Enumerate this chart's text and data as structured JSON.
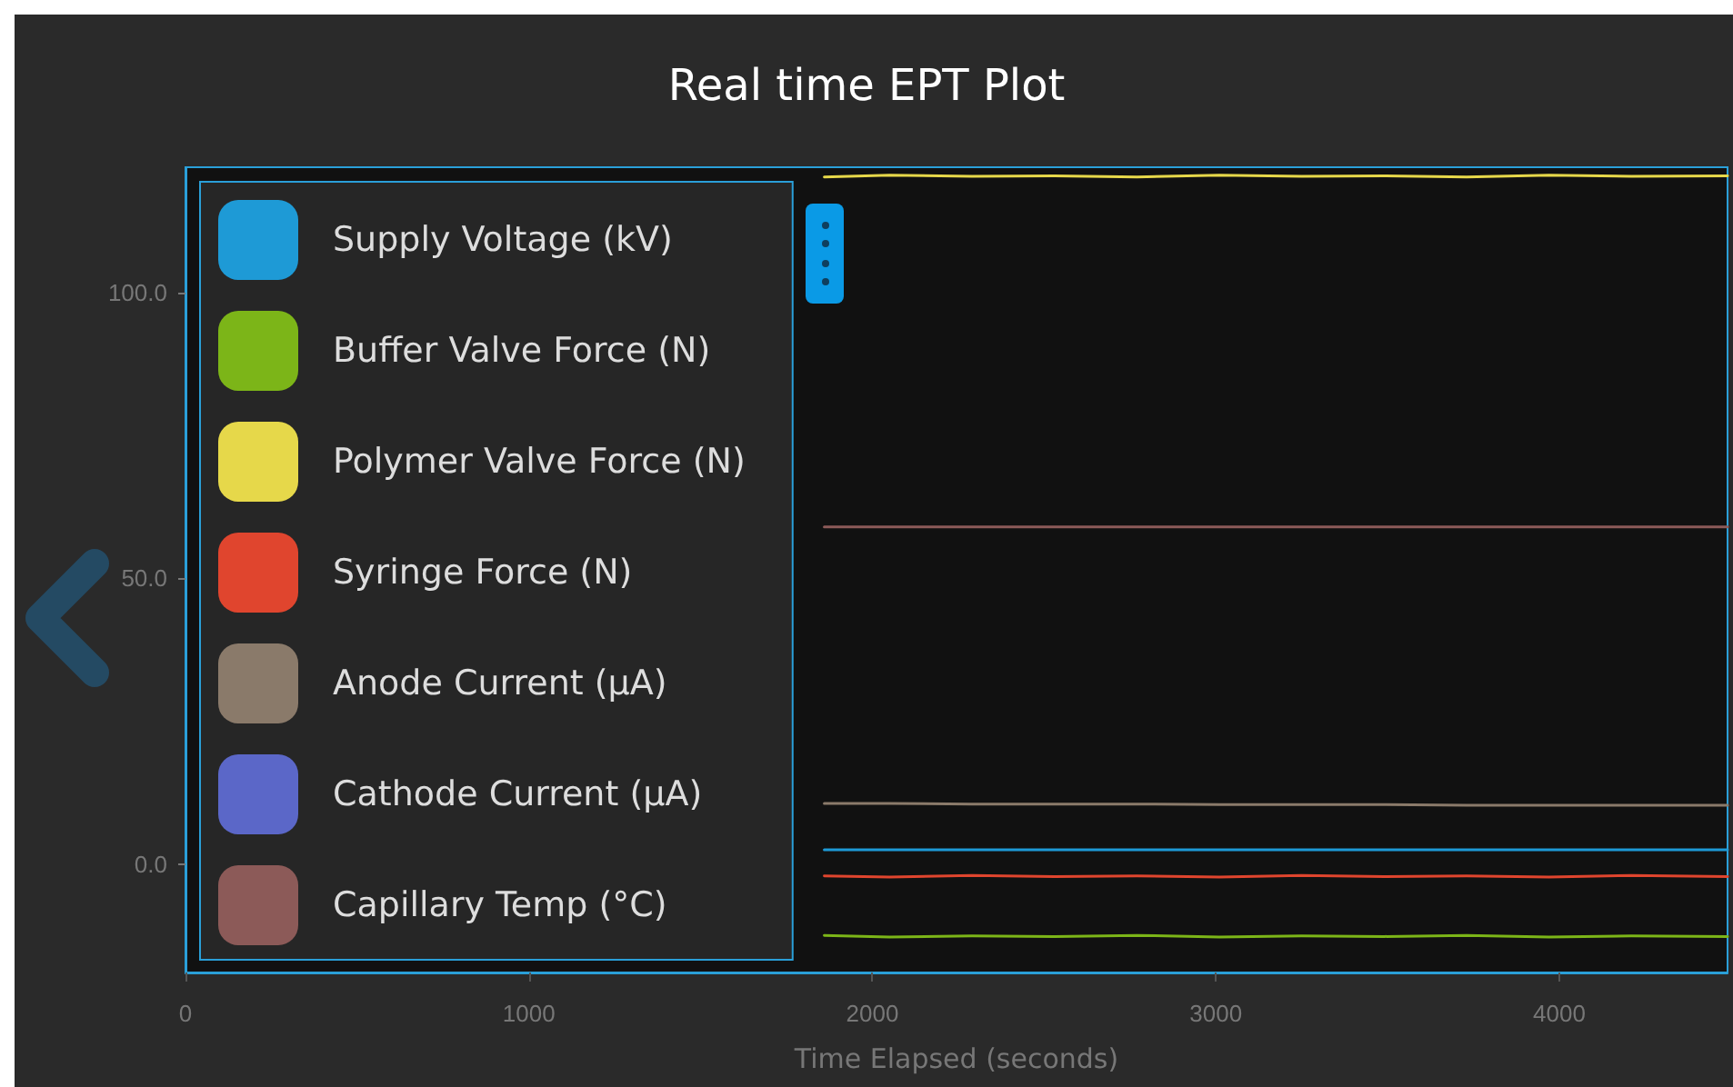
{
  "chart_data": {
    "type": "line",
    "title": "Real time EPT Plot",
    "xlabel": "Time Elapsed (seconds)",
    "x": [
      1860,
      2050,
      2290,
      2530,
      2770,
      3010,
      3250,
      3490,
      3730,
      3970,
      4210,
      4490
    ],
    "xlim": [
      0,
      4490
    ],
    "xticks": [
      0,
      1000,
      2000,
      3000,
      4000
    ],
    "ylim": [
      -19,
      122
    ],
    "yticks": [
      {
        "value": 0,
        "label": "0.0"
      },
      {
        "value": 50,
        "label": "50.0"
      },
      {
        "value": 100,
        "label": "100.0"
      }
    ],
    "grid": false,
    "legend": "left",
    "marker": "none",
    "line_style": "solid",
    "series": [
      {
        "name": "Supply Voltage (kV)",
        "color": "#1e9ad6",
        "values": [
          2.5,
          2.5,
          2.5,
          2.5,
          2.5,
          2.5,
          2.5,
          2.5,
          2.5,
          2.5,
          2.5,
          2.5
        ]
      },
      {
        "name": "Buffer Valve Force (N)",
        "color": "#7cb518",
        "values": [
          -12.5,
          -12.8,
          -12.6,
          -12.7,
          -12.5,
          -12.8,
          -12.6,
          -12.7,
          -12.5,
          -12.8,
          -12.6,
          -12.7
        ]
      },
      {
        "name": "Polymer Valve Force (N)",
        "color": "#e6d84a",
        "values": [
          120.3,
          120.6,
          120.4,
          120.5,
          120.3,
          120.6,
          120.4,
          120.5,
          120.3,
          120.6,
          120.4,
          120.5
        ]
      },
      {
        "name": "Syringe Force (N)",
        "color": "#e0452e",
        "values": [
          -2.1,
          -2.3,
          -2.0,
          -2.2,
          -2.1,
          -2.3,
          -2.0,
          -2.2,
          -2.1,
          -2.3,
          -2.0,
          -2.2
        ]
      },
      {
        "name": "Anode Current (µA)",
        "color": "#8a7a6a",
        "values": [
          10.6,
          10.6,
          10.5,
          10.5,
          10.5,
          10.4,
          10.4,
          10.4,
          10.3,
          10.3,
          10.3,
          10.3
        ]
      },
      {
        "name": "Cathode Current (µA)",
        "color": "#5b67c8",
        "values": [
          null,
          null,
          null,
          null,
          null,
          null,
          null,
          null,
          null,
          null,
          null,
          null
        ]
      },
      {
        "name": "Capillary Temp (°C)",
        "color": "#8c5a58",
        "values": [
          59,
          59,
          59,
          59,
          59,
          59,
          59,
          59,
          59,
          59,
          59,
          59
        ]
      }
    ]
  }
}
